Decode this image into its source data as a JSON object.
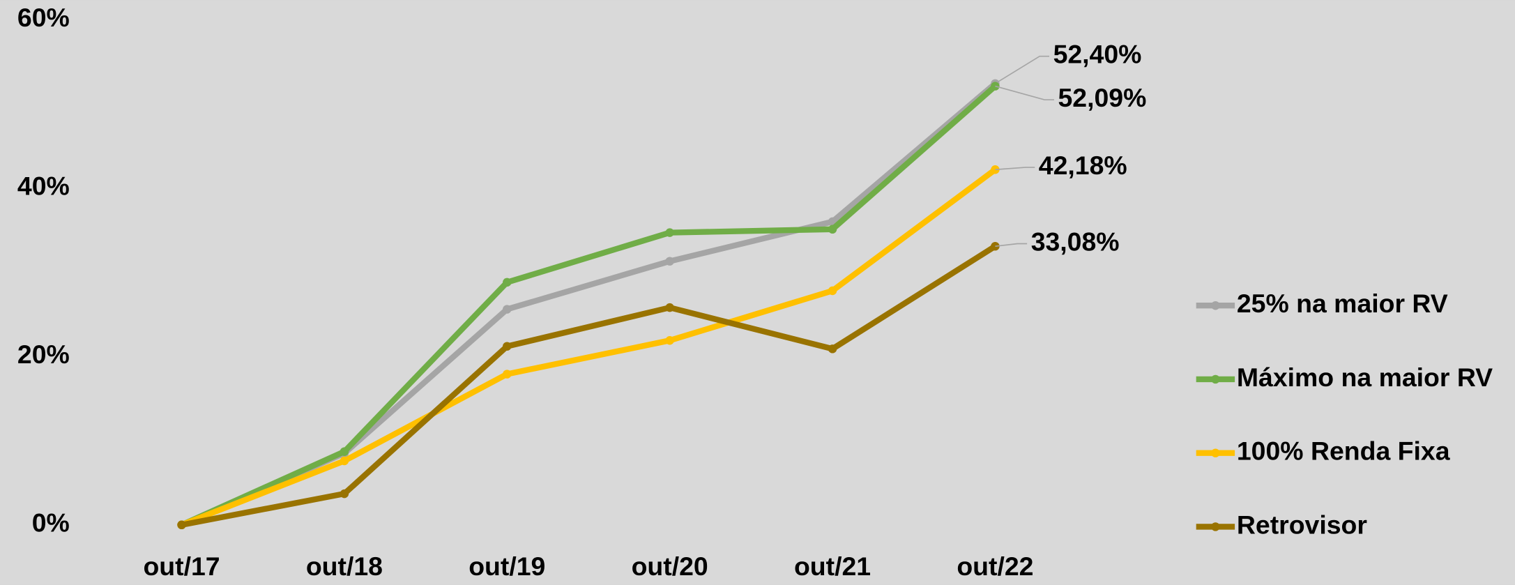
{
  "chart_data": {
    "type": "line",
    "categories": [
      "out/17",
      "out/18",
      "out/19",
      "out/20",
      "out/21",
      "out/22"
    ],
    "ylim": [
      0,
      60
    ],
    "yticks": [
      {
        "value": 0,
        "label": "0%"
      },
      {
        "value": 20,
        "label": "20%"
      },
      {
        "value": 40,
        "label": "40%"
      },
      {
        "value": 60,
        "label": "60%"
      }
    ],
    "grid": false,
    "legend": "right",
    "series": [
      {
        "name": "25% na maior RV",
        "color": "#a5a5a5",
        "values": [
          0,
          8.5,
          25.6,
          31.3,
          36.0,
          52.4
        ],
        "value_labels": [
          null,
          null,
          null,
          null,
          null,
          "52,40%"
        ]
      },
      {
        "name": "Máximo na maior RV",
        "color": "#70ad47",
        "values": [
          0,
          8.7,
          28.8,
          34.7,
          35.1,
          52.09
        ],
        "value_labels": [
          null,
          null,
          null,
          null,
          null,
          "52,09%"
        ]
      },
      {
        "name": "100% Renda Fixa",
        "color": "#ffc000",
        "values": [
          0,
          7.6,
          17.9,
          21.9,
          27.8,
          42.18
        ],
        "value_labels": [
          null,
          null,
          null,
          null,
          null,
          "42,18%"
        ]
      },
      {
        "name": "Retrovisor",
        "color": "#997300",
        "values": [
          0,
          3.7,
          21.2,
          25.8,
          20.9,
          33.08
        ],
        "value_labels": [
          null,
          null,
          null,
          null,
          null,
          "33,08%"
        ]
      }
    ]
  }
}
